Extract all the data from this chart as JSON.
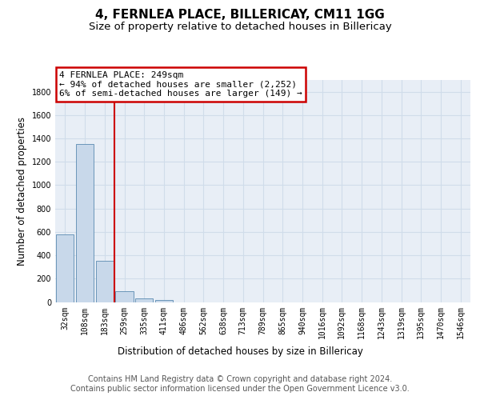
{
  "title": "4, FERNLEA PLACE, BILLERICAY, CM11 1GG",
  "subtitle": "Size of property relative to detached houses in Billericay",
  "xlabel": "Distribution of detached houses by size in Billericay",
  "ylabel": "Number of detached properties",
  "footer_line1": "Contains HM Land Registry data © Crown copyright and database right 2024.",
  "footer_line2": "Contains public sector information licensed under the Open Government Licence v3.0.",
  "bar_labels": [
    "32sqm",
    "108sqm",
    "183sqm",
    "259sqm",
    "335sqm",
    "411sqm",
    "486sqm",
    "562sqm",
    "638sqm",
    "713sqm",
    "789sqm",
    "865sqm",
    "940sqm",
    "1016sqm",
    "1092sqm",
    "1168sqm",
    "1243sqm",
    "1319sqm",
    "1395sqm",
    "1470sqm",
    "1546sqm"
  ],
  "bar_values": [
    580,
    1350,
    350,
    90,
    30,
    20,
    0,
    0,
    0,
    0,
    0,
    0,
    0,
    0,
    0,
    0,
    0,
    0,
    0,
    0,
    0
  ],
  "bar_color": "#c8d8ea",
  "bar_edge_color": "#5a8ab0",
  "grid_color": "#d0dcea",
  "background_color": "#e8eef6",
  "annotation_line1": "4 FERNLEA PLACE: 249sqm",
  "annotation_line2": "← 94% of detached houses are smaller (2,252)",
  "annotation_line3": "6% of semi-detached houses are larger (149) →",
  "annotation_box_edgecolor": "#cc0000",
  "vline_color": "#cc0000",
  "vline_x_index": 2.5,
  "ylim_max": 1900,
  "yticks": [
    0,
    200,
    400,
    600,
    800,
    1000,
    1200,
    1400,
    1600,
    1800
  ],
  "title_fontsize": 11,
  "subtitle_fontsize": 9.5,
  "axis_label_fontsize": 8.5,
  "tick_fontsize": 7,
  "annotation_fontsize": 8,
  "footer_fontsize": 7
}
